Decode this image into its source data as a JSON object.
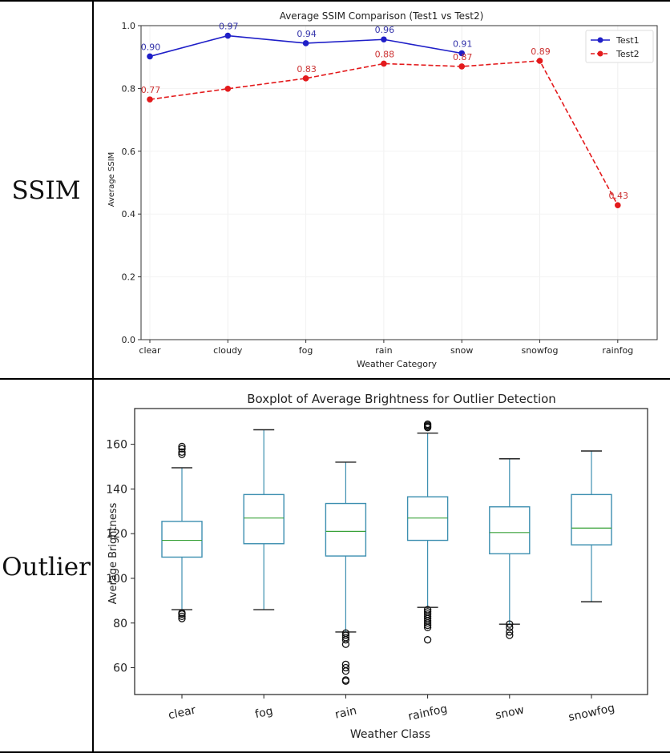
{
  "rows": [
    {
      "label": "SSIM"
    },
    {
      "label": "Outlier"
    }
  ],
  "chart_data": [
    {
      "type": "line",
      "title": "Average SSIM Comparison (Test1 vs Test2)",
      "xlabel": "Weather Category",
      "ylabel": "Average SSIM",
      "categories": [
        "clear",
        "cloudy",
        "fog",
        "rain",
        "snow",
        "snowfog",
        "rainfog"
      ],
      "ylim": [
        0.0,
        1.0
      ],
      "yticks": [
        "0.0",
        "0.2",
        "0.4",
        "0.6",
        "0.8",
        "1.0"
      ],
      "grid": true,
      "legend_position": "top-right",
      "series": [
        {
          "name": "Test1",
          "color": "#1f1fc8",
          "linestyle": "solid",
          "values": [
            0.902,
            0.968,
            0.944,
            0.956,
            0.912,
            null,
            null
          ],
          "labels": [
            "0.90",
            "0.97",
            "0.94",
            "0.96",
            "0.91",
            null,
            null
          ]
        },
        {
          "name": "Test2",
          "color": "#e31a1c",
          "linestyle": "dashed",
          "values": [
            0.765,
            0.799,
            0.832,
            0.879,
            0.87,
            0.888,
            0.428
          ],
          "labels": [
            "0.77",
            null,
            "0.83",
            "0.88",
            "0.87",
            "0.89",
            "0.43"
          ]
        }
      ]
    },
    {
      "type": "box",
      "title": "Boxplot of Average Brightness for Outlier Detection",
      "xlabel": "Weather Class",
      "ylabel": "Average Brightness",
      "categories": [
        "clear",
        "fog",
        "rain",
        "rainfog",
        "snow",
        "snowfog"
      ],
      "ylim": [
        48,
        176
      ],
      "yticks": [
        "60",
        "80",
        "100",
        "120",
        "140",
        "160"
      ],
      "box_color": "#3d8fb0",
      "median_color": "#3aa23a",
      "boxes": [
        {
          "name": "clear",
          "whisker_low": 86,
          "q1": 109.5,
          "median": 117,
          "q3": 125.5,
          "whisker_high": 149.5,
          "outliers": [
            82,
            83,
            84,
            84.5,
            155.5,
            156.5,
            158,
            159
          ]
        },
        {
          "name": "fog",
          "whisker_low": 86,
          "q1": 115.5,
          "median": 127,
          "q3": 137.5,
          "whisker_high": 166.5,
          "outliers": []
        },
        {
          "name": "rain",
          "whisker_low": 76,
          "q1": 110,
          "median": 121,
          "q3": 133.5,
          "whisker_high": 152,
          "outliers": [
            54,
            54.5,
            58.5,
            60,
            61.5,
            70.5,
            72.5,
            73.5,
            74.5,
            75.5
          ]
        },
        {
          "name": "rainfog",
          "whisker_low": 87,
          "q1": 117,
          "median": 127,
          "q3": 136.5,
          "whisker_high": 165,
          "outliers": [
            72.5,
            78,
            79,
            80,
            81,
            82,
            83,
            84,
            85,
            86,
            167.5,
            168,
            168.5,
            169
          ]
        },
        {
          "name": "snow",
          "whisker_low": 79.5,
          "q1": 111,
          "median": 120.5,
          "q3": 132,
          "whisker_high": 153.5,
          "outliers": [
            74.5,
            76,
            78,
            79.5
          ]
        },
        {
          "name": "snowfog",
          "whisker_low": 89.5,
          "q1": 115,
          "median": 122.5,
          "q3": 137.5,
          "whisker_high": 157,
          "outliers": []
        }
      ]
    }
  ]
}
